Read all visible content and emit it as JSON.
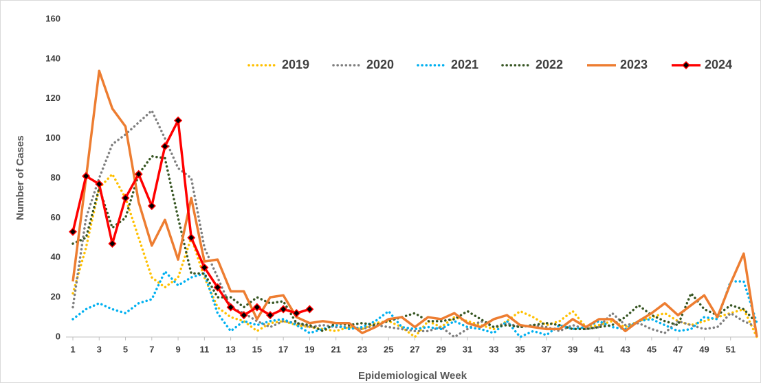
{
  "chart_data": {
    "type": "line",
    "x_label": "Epidemiological Week",
    "y_label": "Number of Cases",
    "x": [
      1,
      2,
      3,
      4,
      5,
      6,
      7,
      8,
      9,
      10,
      11,
      12,
      13,
      14,
      15,
      16,
      17,
      18,
      19,
      20,
      21,
      22,
      23,
      24,
      25,
      26,
      27,
      28,
      29,
      30,
      31,
      32,
      33,
      34,
      35,
      36,
      37,
      38,
      39,
      40,
      41,
      42,
      43,
      44,
      45,
      46,
      47,
      48,
      49,
      50,
      51,
      52,
      53
    ],
    "xlim": [
      1,
      53
    ],
    "xticks": [
      1,
      3,
      5,
      7,
      9,
      11,
      13,
      15,
      17,
      19,
      21,
      23,
      25,
      27,
      29,
      31,
      33,
      35,
      37,
      39,
      41,
      43,
      45,
      47,
      49,
      51
    ],
    "ylim": [
      0,
      160
    ],
    "yticks": [
      0,
      20,
      40,
      60,
      80,
      100,
      120,
      140,
      160
    ],
    "grid": false,
    "legend": "top-right",
    "series": [
      {
        "name": "2019",
        "color": "#ffc000",
        "style": "dotted",
        "values": [
          22,
          45,
          75,
          82,
          70,
          50,
          30,
          25,
          30,
          50,
          30,
          15,
          10,
          8,
          3,
          7,
          8,
          6,
          5,
          4,
          3,
          5,
          4,
          7,
          8,
          5,
          0,
          8,
          5,
          10,
          8,
          6,
          4,
          8,
          13,
          10,
          6,
          8,
          13,
          5,
          6,
          8,
          5,
          8,
          10,
          12,
          8,
          6,
          8,
          10,
          12,
          14,
          0
        ]
      },
      {
        "name": "2020",
        "color": "#7f7f7f",
        "style": "dotted",
        "values": [
          15,
          60,
          80,
          97,
          102,
          108,
          114,
          100,
          85,
          80,
          45,
          30,
          15,
          12,
          8,
          5,
          8,
          7,
          5,
          6,
          5,
          5,
          4,
          6,
          5,
          4,
          3,
          3,
          5,
          0,
          4,
          8,
          5,
          7,
          5,
          6,
          5,
          3,
          6,
          4,
          5,
          12,
          6,
          7,
          4,
          2,
          8,
          6,
          4,
          5,
          12,
          8,
          5
        ]
      },
      {
        "name": "2021",
        "color": "#00b0f0",
        "style": "dotted",
        "values": [
          9,
          14,
          17,
          14,
          12,
          17,
          19,
          33,
          26,
          30,
          32,
          12,
          3,
          8,
          6,
          8,
          9,
          6,
          2,
          4,
          6,
          4,
          5,
          8,
          13,
          5,
          4,
          5,
          4,
          8,
          5,
          4,
          2,
          8,
          0,
          3,
          1,
          6,
          4,
          5,
          8,
          5,
          4,
          8,
          9,
          6,
          3,
          4,
          10,
          9,
          28,
          28,
          7
        ]
      },
      {
        "name": "2022",
        "color": "#375623",
        "style": "dotted",
        "values": [
          47,
          50,
          75,
          55,
          60,
          82,
          91,
          90,
          60,
          32,
          32,
          20,
          20,
          15,
          20,
          17,
          18,
          7,
          6,
          3,
          7,
          6,
          7,
          6,
          8,
          10,
          12,
          8,
          8,
          9,
          13,
          9,
          5,
          6,
          5,
          6,
          7,
          6,
          4,
          4,
          5,
          6,
          10,
          16,
          11,
          8,
          6,
          22,
          14,
          11,
          16,
          14,
          7
        ]
      },
      {
        "name": "2023",
        "color": "#ed7d31",
        "style": "solid",
        "values": [
          28,
          80,
          134,
          115,
          106,
          68,
          46,
          59,
          39,
          70,
          38,
          39,
          23,
          23,
          9,
          20,
          21,
          10,
          7,
          8,
          7,
          7,
          2,
          5,
          9,
          10,
          5,
          10,
          9,
          12,
          7,
          5,
          9,
          11,
          6,
          5,
          4,
          4,
          9,
          5,
          9,
          9,
          3,
          8,
          12,
          17,
          11,
          16,
          21,
          10,
          27,
          42,
          0
        ]
      },
      {
        "name": "2024",
        "color": "#ff0000",
        "style": "solid",
        "marker": "diamond",
        "marker_color": "#000000",
        "values": [
          53,
          81,
          77,
          47,
          70,
          82,
          66,
          96,
          109,
          50,
          35,
          25,
          15,
          11,
          15,
          11,
          14,
          12,
          14,
          null,
          null,
          null,
          null,
          null,
          null,
          null,
          null,
          null,
          null,
          null,
          null,
          null,
          null,
          null,
          null,
          null,
          null,
          null,
          null,
          null,
          null,
          null,
          null,
          null,
          null,
          null,
          null,
          null,
          null,
          null,
          null,
          null,
          null
        ]
      }
    ]
  }
}
